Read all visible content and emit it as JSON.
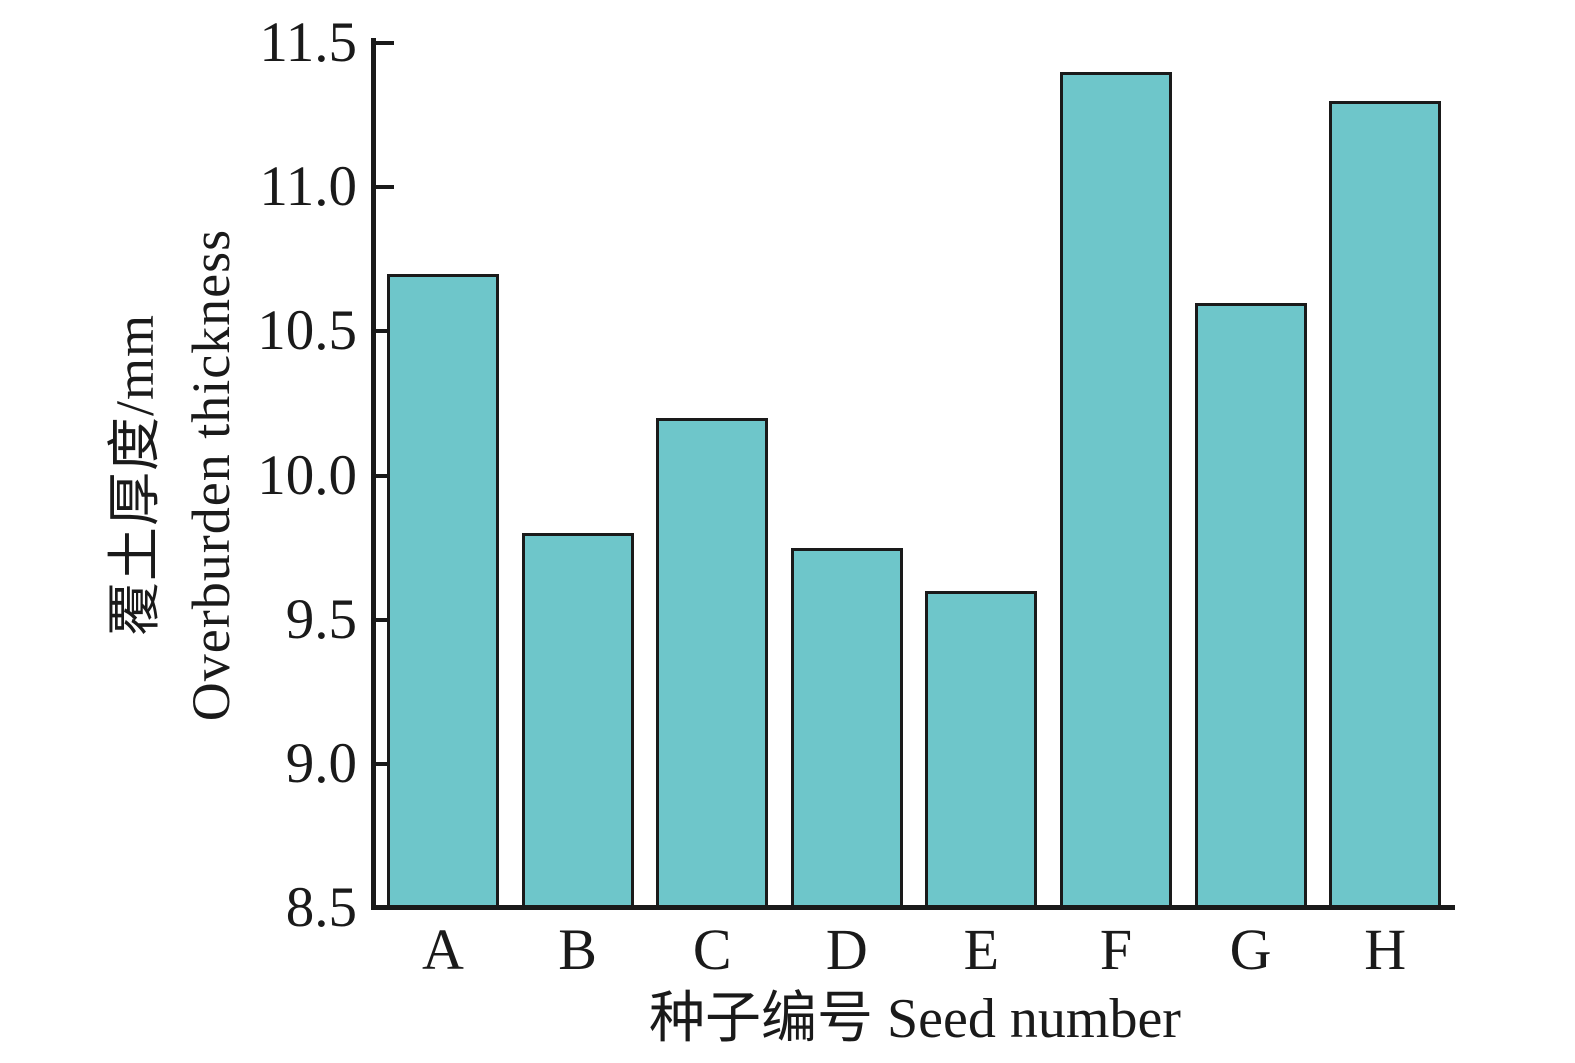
{
  "figure": {
    "background": "#ffffff",
    "text_color": "#1a1a1a"
  },
  "axes": {
    "y_title_line1": "覆土厚度/mm",
    "y_title_line2": "Overburden thickness",
    "x_title": "种子编号 Seed number",
    "yticks": [
      "8.5",
      "9.0",
      "9.5",
      "10.0",
      "10.5",
      "11.0",
      "11.5"
    ]
  },
  "chart_data": {
    "type": "bar",
    "categories": [
      "A",
      "B",
      "C",
      "D",
      "E",
      "F",
      "G",
      "H"
    ],
    "values": [
      10.7,
      9.8,
      10.2,
      9.75,
      9.6,
      11.4,
      10.6,
      11.3
    ],
    "title": "",
    "xlabel": "种子编号 Seed number",
    "ylabel": "覆土厚度/mm Overburden thickness",
    "ylim": [
      8.5,
      11.5
    ],
    "ytick_step": 0.5,
    "grid": false,
    "legend": "none",
    "bar_color": "#6ec6ca",
    "bar_border_color": "#1a1a1a"
  }
}
